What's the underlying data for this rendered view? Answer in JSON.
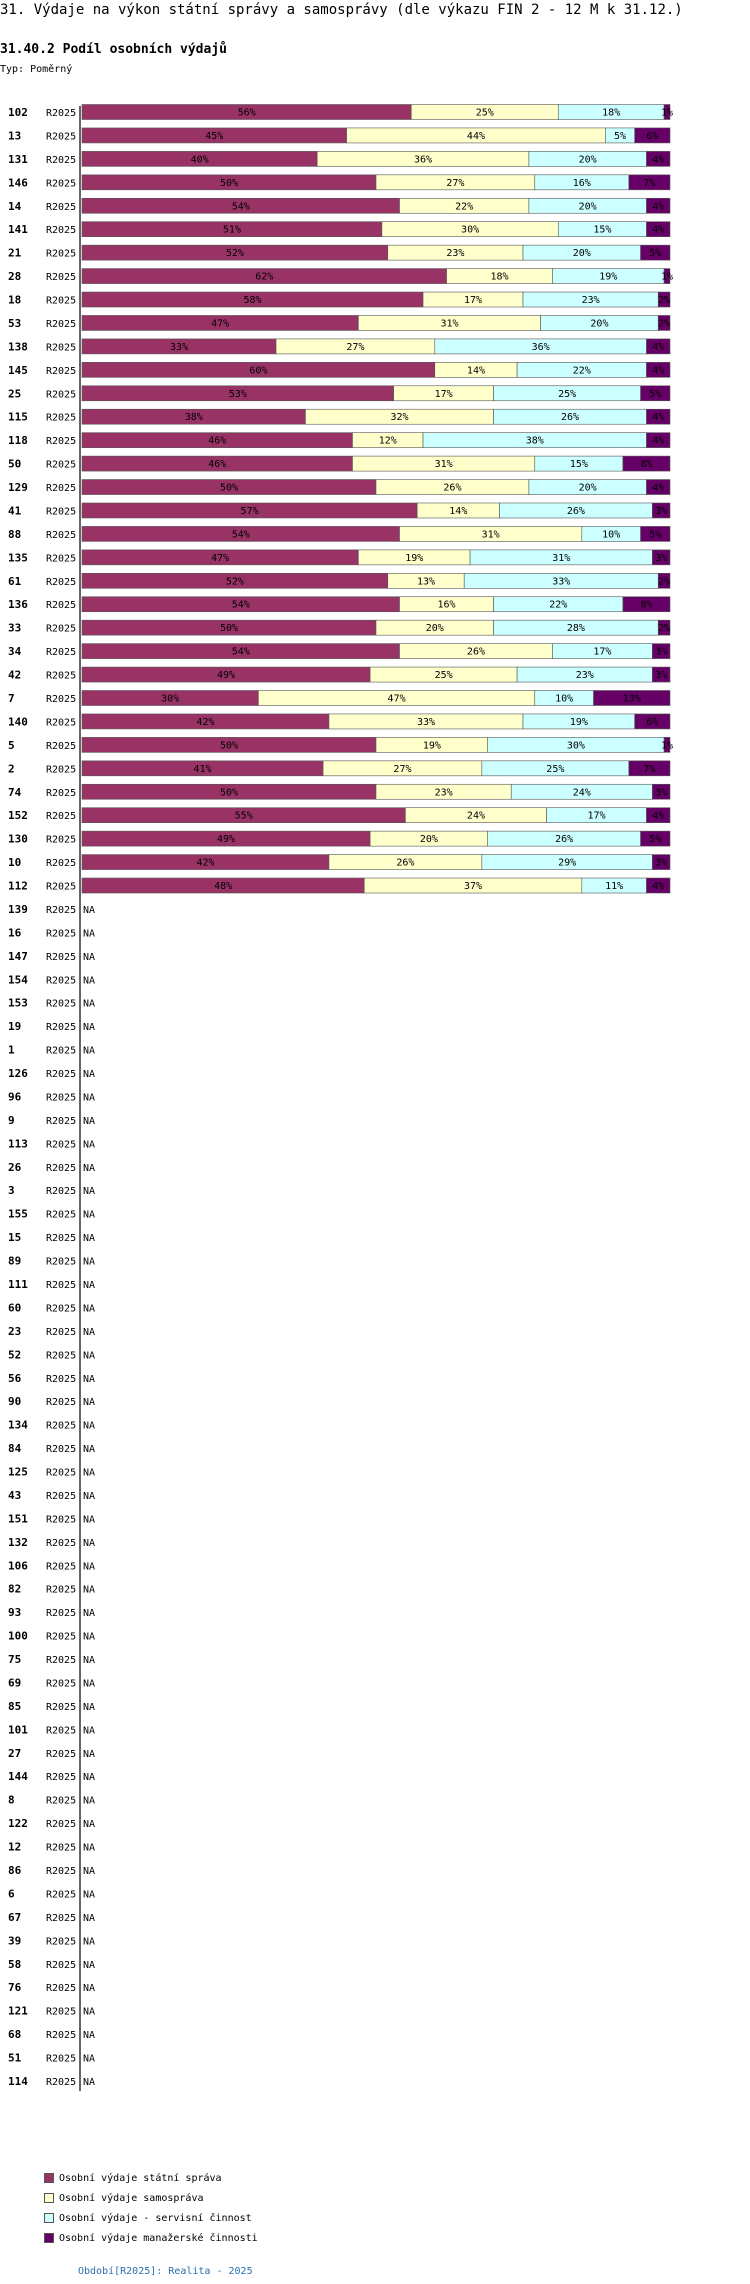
{
  "header": {
    "title": "31. Výdaje na výkon státní správy a samosprávy (dle výkazu FIN 2 - 12 M k 31.12.)",
    "subtitle": "31.40.2 Podíl osobních výdajů",
    "type_label": "Typ: Poměrný"
  },
  "footer": {
    "text": "Období[R2025]: Realita - 2025"
  },
  "chart_data": {
    "type": "bar",
    "orientation": "horizontal",
    "stacked": true,
    "normalized": true,
    "period_label": "R2025",
    "na_label": "NA",
    "xlim": [
      0,
      100
    ],
    "legend_position": "bottom-left",
    "series": [
      {
        "name": "Osobní výdaje státní správa",
        "color": "#993366"
      },
      {
        "name": "Osobní výdaje samospráva",
        "color": "#ffffcc"
      },
      {
        "name": "Osobní výdaje - servisní činnost",
        "color": "#ccffff"
      },
      {
        "name": "Osobní výdaje manažerské činnosti",
        "color": "#660066"
      }
    ],
    "rows": [
      {
        "category": "102",
        "values": [
          56,
          25,
          18,
          1
        ],
        "labels": [
          "56%",
          "25%",
          "18%",
          "1%"
        ]
      },
      {
        "category": "13",
        "values": [
          45,
          44,
          5,
          6
        ],
        "labels": [
          "45%",
          "44%",
          "5%",
          "6%"
        ]
      },
      {
        "category": "131",
        "values": [
          40,
          36,
          20,
          4
        ],
        "labels": [
          "40%",
          "36%",
          "20%",
          "4%"
        ]
      },
      {
        "category": "146",
        "values": [
          50,
          27,
          16,
          7
        ],
        "labels": [
          "50%",
          "27%",
          "16%",
          "7%"
        ]
      },
      {
        "category": "14",
        "values": [
          54,
          22,
          20,
          4
        ],
        "labels": [
          "54%",
          "22%",
          "20%",
          "4%"
        ]
      },
      {
        "category": "141",
        "values": [
          51,
          30,
          15,
          4
        ],
        "labels": [
          "51%",
          "30%",
          "15%",
          "4%"
        ]
      },
      {
        "category": "21",
        "values": [
          52,
          23,
          20,
          5
        ],
        "labels": [
          "52%",
          "23%",
          "20%",
          "5%"
        ]
      },
      {
        "category": "28",
        "values": [
          62,
          18,
          19,
          1
        ],
        "labels": [
          "62%",
          "18%",
          "19%",
          "1%"
        ]
      },
      {
        "category": "18",
        "values": [
          58,
          17,
          23,
          2
        ],
        "labels": [
          "58%",
          "17%",
          "23%",
          "2%"
        ]
      },
      {
        "category": "53",
        "values": [
          47,
          31,
          20,
          2
        ],
        "labels": [
          "47%",
          "31%",
          "20%",
          "2%"
        ]
      },
      {
        "category": "138",
        "values": [
          33,
          27,
          36,
          4
        ],
        "labels": [
          "33%",
          "27%",
          "36%",
          "4%"
        ]
      },
      {
        "category": "145",
        "values": [
          60,
          14,
          22,
          4
        ],
        "labels": [
          "60%",
          "14%",
          "22%",
          "4%"
        ]
      },
      {
        "category": "25",
        "values": [
          53,
          17,
          25,
          5
        ],
        "labels": [
          "53%",
          "17%",
          "25%",
          "5%"
        ]
      },
      {
        "category": "115",
        "values": [
          38,
          32,
          26,
          4
        ],
        "labels": [
          "38%",
          "32%",
          "26%",
          "4%"
        ]
      },
      {
        "category": "118",
        "values": [
          46,
          12,
          38,
          4
        ],
        "labels": [
          "46%",
          "12%",
          "38%",
          "4%"
        ]
      },
      {
        "category": "50",
        "values": [
          46,
          31,
          15,
          8
        ],
        "labels": [
          "46%",
          "31%",
          "15%",
          "8%"
        ]
      },
      {
        "category": "129",
        "values": [
          50,
          26,
          20,
          4
        ],
        "labels": [
          "50%",
          "26%",
          "20%",
          "4%"
        ]
      },
      {
        "category": "41",
        "values": [
          57,
          14,
          26,
          3
        ],
        "labels": [
          "57%",
          "14%",
          "26%",
          "3%"
        ]
      },
      {
        "category": "88",
        "values": [
          54,
          31,
          10,
          5
        ],
        "labels": [
          "54%",
          "31%",
          "10%",
          "5%"
        ]
      },
      {
        "category": "135",
        "values": [
          47,
          19,
          31,
          3
        ],
        "labels": [
          "47%",
          "19%",
          "31%",
          "3%"
        ]
      },
      {
        "category": "61",
        "values": [
          52,
          13,
          33,
          2
        ],
        "labels": [
          "52%",
          "13%",
          "33%",
          "2%"
        ]
      },
      {
        "category": "136",
        "values": [
          54,
          16,
          22,
          8
        ],
        "labels": [
          "54%",
          "16%",
          "22%",
          "8%"
        ]
      },
      {
        "category": "33",
        "values": [
          50,
          20,
          28,
          2
        ],
        "labels": [
          "50%",
          "20%",
          "28%",
          "2%"
        ]
      },
      {
        "category": "34",
        "values": [
          54,
          26,
          17,
          3
        ],
        "labels": [
          "54%",
          "26%",
          "17%",
          "3%"
        ]
      },
      {
        "category": "42",
        "values": [
          49,
          25,
          23,
          3
        ],
        "labels": [
          "49%",
          "25%",
          "23%",
          "3%"
        ]
      },
      {
        "category": "7",
        "values": [
          30,
          47,
          10,
          13
        ],
        "labels": [
          "30%",
          "47%",
          "10%",
          "13%"
        ]
      },
      {
        "category": "140",
        "values": [
          42,
          33,
          19,
          6
        ],
        "labels": [
          "42%",
          "33%",
          "19%",
          "6%"
        ]
      },
      {
        "category": "5",
        "values": [
          50,
          19,
          30,
          1
        ],
        "labels": [
          "50%",
          "19%",
          "30%",
          "1%"
        ]
      },
      {
        "category": "2",
        "values": [
          41,
          27,
          25,
          7
        ],
        "labels": [
          "41%",
          "27%",
          "25%",
          "7%"
        ]
      },
      {
        "category": "74",
        "values": [
          50,
          23,
          24,
          3
        ],
        "labels": [
          "50%",
          "23%",
          "24%",
          "3%"
        ]
      },
      {
        "category": "152",
        "values": [
          55,
          24,
          17,
          4
        ],
        "labels": [
          "55%",
          "24%",
          "17%",
          "4%"
        ]
      },
      {
        "category": "130",
        "values": [
          49,
          20,
          26,
          5
        ],
        "labels": [
          "49%",
          "20%",
          "26%",
          "5%"
        ]
      },
      {
        "category": "10",
        "values": [
          42,
          26,
          29,
          3
        ],
        "labels": [
          "42%",
          "26%",
          "29%",
          "3%"
        ]
      },
      {
        "category": "112",
        "values": [
          48,
          37,
          11,
          4
        ],
        "labels": [
          "48%",
          "37%",
          "11%",
          "4%"
        ]
      },
      {
        "category": "139",
        "values": null
      },
      {
        "category": "16",
        "values": null
      },
      {
        "category": "147",
        "values": null
      },
      {
        "category": "154",
        "values": null
      },
      {
        "category": "153",
        "values": null
      },
      {
        "category": "19",
        "values": null
      },
      {
        "category": "1",
        "values": null
      },
      {
        "category": "126",
        "values": null
      },
      {
        "category": "96",
        "values": null
      },
      {
        "category": "9",
        "values": null
      },
      {
        "category": "113",
        "values": null
      },
      {
        "category": "26",
        "values": null
      },
      {
        "category": "3",
        "values": null
      },
      {
        "category": "155",
        "values": null
      },
      {
        "category": "15",
        "values": null
      },
      {
        "category": "89",
        "values": null
      },
      {
        "category": "111",
        "values": null
      },
      {
        "category": "60",
        "values": null
      },
      {
        "category": "23",
        "values": null
      },
      {
        "category": "52",
        "values": null
      },
      {
        "category": "56",
        "values": null
      },
      {
        "category": "90",
        "values": null
      },
      {
        "category": "134",
        "values": null
      },
      {
        "category": "84",
        "values": null
      },
      {
        "category": "125",
        "values": null
      },
      {
        "category": "43",
        "values": null
      },
      {
        "category": "151",
        "values": null
      },
      {
        "category": "132",
        "values": null
      },
      {
        "category": "106",
        "values": null
      },
      {
        "category": "82",
        "values": null
      },
      {
        "category": "93",
        "values": null
      },
      {
        "category": "100",
        "values": null
      },
      {
        "category": "75",
        "values": null
      },
      {
        "category": "69",
        "values": null
      },
      {
        "category": "85",
        "values": null
      },
      {
        "category": "101",
        "values": null
      },
      {
        "category": "27",
        "values": null
      },
      {
        "category": "144",
        "values": null
      },
      {
        "category": "8",
        "values": null
      },
      {
        "category": "122",
        "values": null
      },
      {
        "category": "12",
        "values": null
      },
      {
        "category": "86",
        "values": null
      },
      {
        "category": "6",
        "values": null
      },
      {
        "category": "67",
        "values": null
      },
      {
        "category": "39",
        "values": null
      },
      {
        "category": "58",
        "values": null
      },
      {
        "category": "76",
        "values": null
      },
      {
        "category": "121",
        "values": null
      },
      {
        "category": "68",
        "values": null
      },
      {
        "category": "51",
        "values": null
      },
      {
        "category": "114",
        "values": null
      }
    ]
  }
}
